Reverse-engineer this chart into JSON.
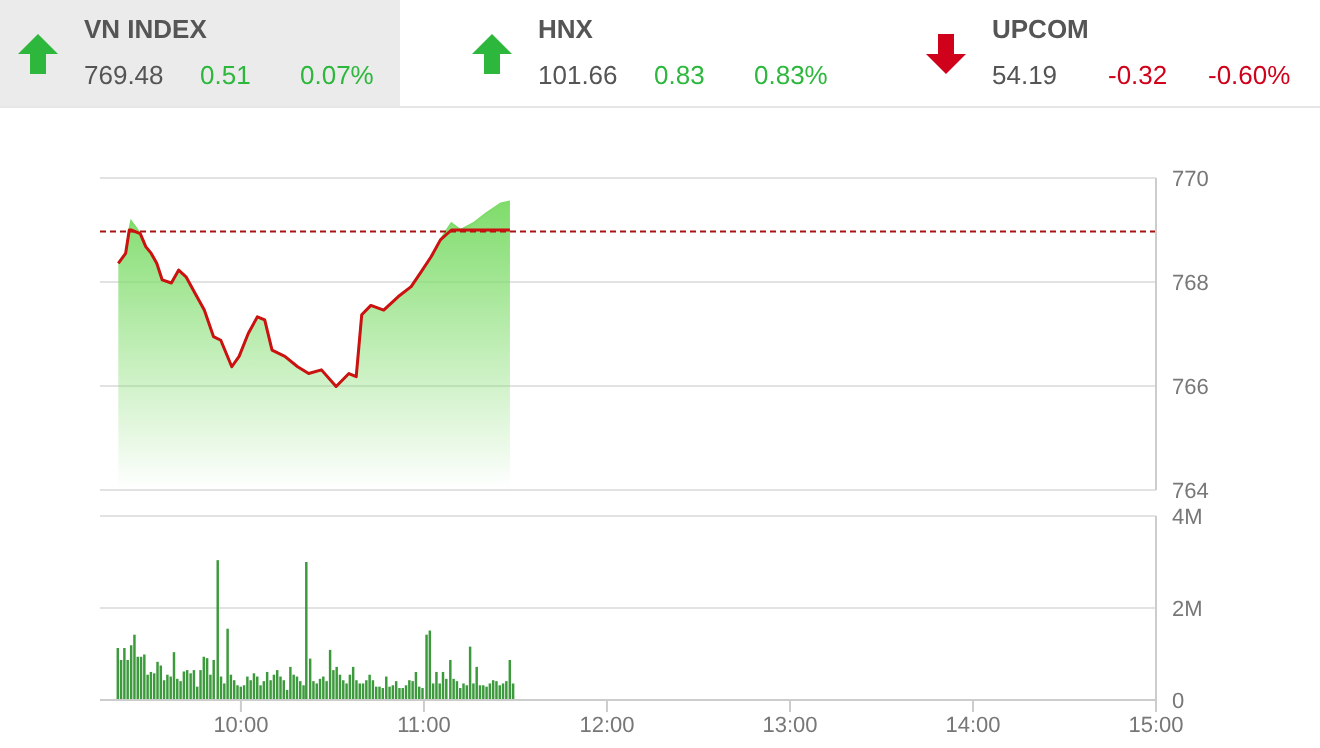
{
  "chart_data": [
    {
      "type": "other",
      "data_labels": true,
      "categories": [
        "VN INDEX",
        "HNX",
        "UPCOM"
      ],
      "colors": [
        "#2db83d",
        "#2db83d",
        "#d0021b"
      ],
      "series": [
        {
          "values": [
            769.48,
            101.66,
            54.19
          ]
        },
        {
          "values": [
            0.51,
            0.83,
            -0.32
          ]
        },
        {
          "values": [
            0.07,
            0.83,
            -0.6
          ],
          "value_labels": [
            "0.07%",
            "0.83%",
            "-0.60%"
          ]
        }
      ]
    },
    {
      "type": "area",
      "x": [
        9.33,
        9.37,
        9.39,
        9.4,
        9.45,
        9.48,
        9.51,
        9.54,
        9.57,
        9.62,
        9.66,
        9.7,
        9.75,
        9.8,
        9.85,
        9.89,
        9.95,
        9.99,
        10.04,
        10.09,
        10.13,
        10.17,
        10.24,
        10.31,
        10.37,
        10.44,
        10.52,
        10.59,
        10.63,
        10.66,
        10.71,
        10.78,
        10.86,
        10.93,
        10.98,
        11.04,
        11.09,
        11.15,
        11.2,
        11.27,
        11.34,
        11.42,
        11.47
      ],
      "series": [
        {
          "color": "#7fdc6b",
          "values": [
            768.36,
            768.55,
            769.0,
            769.17,
            768.93,
            768.68,
            768.55,
            768.36,
            768.04,
            767.98,
            768.23,
            768.1,
            767.78,
            767.46,
            766.95,
            766.88,
            766.37,
            766.57,
            767.01,
            767.33,
            767.27,
            766.69,
            766.57,
            766.37,
            766.24,
            766.31,
            765.99,
            766.24,
            766.18,
            767.37,
            767.55,
            767.46,
            767.72,
            767.91,
            768.17,
            768.49,
            768.81,
            769.13,
            769.0,
            769.13,
            769.32,
            769.51,
            769.55
          ]
        },
        {
          "type": "line",
          "color": "#cc1111",
          "values": [
            768.36,
            768.55,
            769.0,
            769.0,
            768.93,
            768.68,
            768.55,
            768.36,
            768.04,
            767.98,
            768.23,
            768.1,
            767.78,
            767.46,
            766.95,
            766.88,
            766.37,
            766.57,
            767.01,
            767.33,
            767.27,
            766.69,
            766.57,
            766.37,
            766.24,
            766.31,
            765.99,
            766.24,
            766.18,
            767.37,
            767.55,
            767.46,
            767.72,
            767.91,
            768.17,
            768.49,
            768.81,
            769.0,
            769.0,
            769.0,
            769.0,
            769.0,
            769.0
          ]
        }
      ],
      "xlim": [
        9.23,
        15
      ],
      "ylim": [
        764,
        770
      ],
      "yticks": [
        764,
        766,
        768,
        770
      ],
      "ref_lines": [
        {
          "axis": "y",
          "value": 768.97,
          "color": "#aa1111",
          "line_style": "dashed"
        }
      ],
      "grid": "y",
      "tick_labels": "y",
      "marker": "none"
    },
    {
      "type": "bar",
      "color": "#3c9a3c",
      "x": [
        9.328,
        9.346,
        9.364,
        9.382,
        9.401,
        9.419,
        9.437,
        9.455,
        9.473,
        9.491,
        9.509,
        9.527,
        9.545,
        9.563,
        9.581,
        9.599,
        9.617,
        9.635,
        9.653,
        9.671,
        9.689,
        9.707,
        9.726,
        9.744,
        9.762,
        9.78,
        9.798,
        9.816,
        9.834,
        9.852,
        9.874,
        9.892,
        9.91,
        9.928,
        9.946,
        9.964,
        9.982,
        10.0,
        10.018,
        10.036,
        10.054,
        10.072,
        10.09,
        10.108,
        10.126,
        10.144,
        10.163,
        10.181,
        10.199,
        10.217,
        10.235,
        10.253,
        10.271,
        10.289,
        10.307,
        10.325,
        10.343,
        10.358,
        10.379,
        10.397,
        10.415,
        10.433,
        10.451,
        10.469,
        10.488,
        10.506,
        10.524,
        10.542,
        10.56,
        10.578,
        10.596,
        10.614,
        10.632,
        10.65,
        10.668,
        10.686,
        10.704,
        10.722,
        10.74,
        10.758,
        10.776,
        10.795,
        10.813,
        10.831,
        10.849,
        10.867,
        10.885,
        10.903,
        10.921,
        10.939,
        10.957,
        10.975,
        10.993,
        11.015,
        11.033,
        11.051,
        11.069,
        11.087,
        11.105,
        11.123,
        11.145,
        11.163,
        11.181,
        11.199,
        11.217,
        11.235,
        11.253,
        11.271,
        11.289,
        11.307,
        11.325,
        11.343,
        11.361,
        11.379,
        11.397,
        11.415,
        11.433,
        11.451,
        11.47,
        11.488
      ],
      "values": [
        1.13,
        0.87,
        1.13,
        0.87,
        1.19,
        1.42,
        0.94,
        0.94,
        0.99,
        0.55,
        0.61,
        0.58,
        0.83,
        0.75,
        0.43,
        0.55,
        0.51,
        1.04,
        0.46,
        0.41,
        0.62,
        0.65,
        0.58,
        0.65,
        0.29,
        0.65,
        0.94,
        0.91,
        0.55,
        0.87,
        3.04,
        0.51,
        0.36,
        1.55,
        0.55,
        0.43,
        0.32,
        0.29,
        0.32,
        0.51,
        0.43,
        0.58,
        0.51,
        0.32,
        0.41,
        0.61,
        0.43,
        0.55,
        0.65,
        0.51,
        0.43,
        0.22,
        0.72,
        0.55,
        0.51,
        0.41,
        0.32,
        3.0,
        0.9,
        0.41,
        0.36,
        0.46,
        0.51,
        0.41,
        1.09,
        0.65,
        0.72,
        0.55,
        0.43,
        0.36,
        0.55,
        0.72,
        0.43,
        0.36,
        0.36,
        0.43,
        0.55,
        0.43,
        0.29,
        0.29,
        0.26,
        0.51,
        0.29,
        0.32,
        0.41,
        0.26,
        0.26,
        0.32,
        0.43,
        0.41,
        0.61,
        0.29,
        0.26,
        1.42,
        1.51,
        0.36,
        0.61,
        0.36,
        0.61,
        0.46,
        0.87,
        0.46,
        0.41,
        0.26,
        0.36,
        0.32,
        1.16,
        0.36,
        0.72,
        0.32,
        0.32,
        0.29,
        0.36,
        0.43,
        0.41,
        0.32,
        0.36,
        0.41,
        0.87,
        0.36
      ],
      "xlim": [
        9.23,
        15
      ],
      "xticks": [
        {
          "value": 10,
          "label": "10:00"
        },
        {
          "value": 11,
          "label": "11:00"
        },
        {
          "value": 12,
          "label": "12:00"
        },
        {
          "value": 13,
          "label": "13:00"
        },
        {
          "value": 14,
          "label": "14:00"
        },
        {
          "value": 15,
          "label": "15:00"
        }
      ],
      "ylim": [
        0,
        4
      ],
      "yticks": [
        {
          "value": 0,
          "label": "0"
        },
        {
          "value": 2,
          "label": "2M"
        },
        {
          "value": 4,
          "label": "4M"
        }
      ],
      "grid": "y"
    }
  ]
}
